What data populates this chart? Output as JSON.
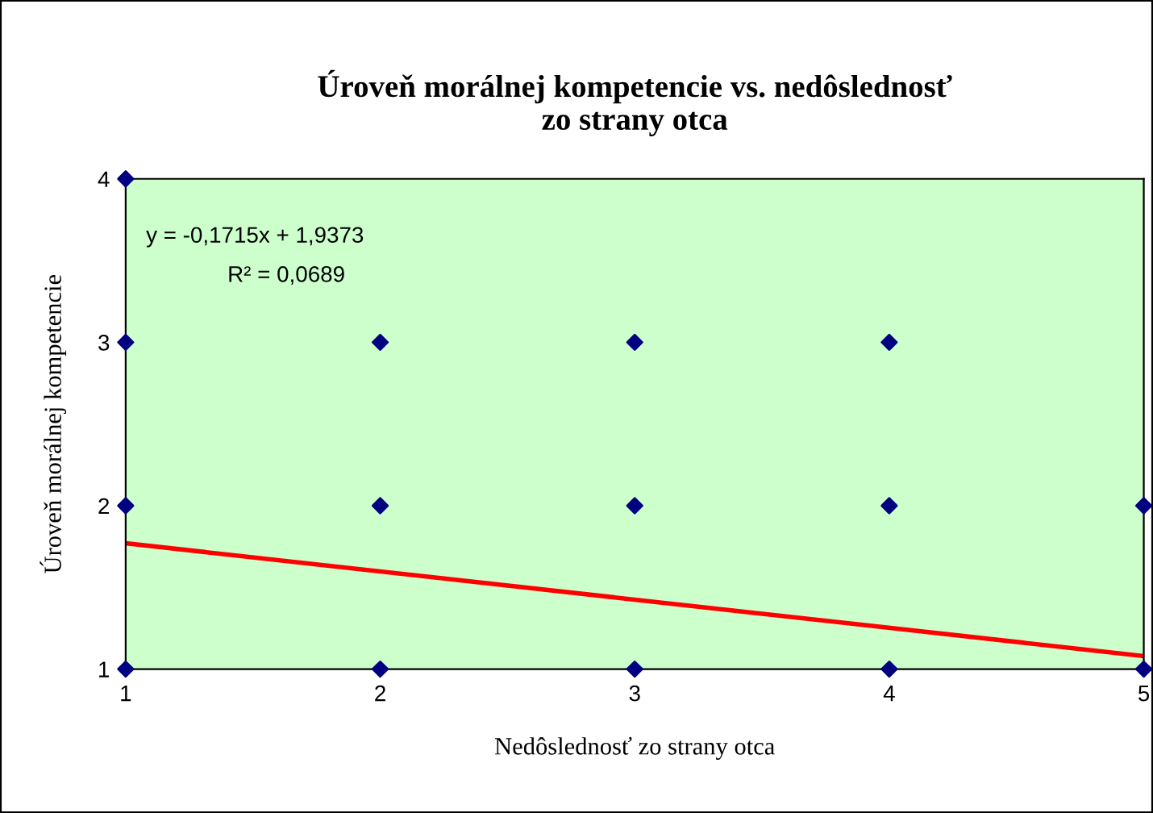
{
  "chart_data": {
    "type": "scatter",
    "title": "Úroveň morálnej kompetencie vs. nedôslednosť\nzo strany otca",
    "xlabel": "Nedôslednosť zo strany otca",
    "ylabel": "Úroveň morálnej kompetencie",
    "series": [
      {
        "type": "scatter",
        "color": "#000080",
        "marker": "diamond",
        "x": [
          1,
          1,
          1,
          1,
          2,
          2,
          2,
          3,
          3,
          3,
          4,
          4,
          4,
          5,
          5
        ],
        "values": [
          4,
          3,
          2,
          1,
          3,
          2,
          1,
          3,
          2,
          1,
          3,
          2,
          1,
          2,
          1
        ]
      },
      {
        "type": "line",
        "color": "#ff0000",
        "line_style": "solid",
        "x": [
          1,
          5
        ],
        "values": [
          1.77,
          1.08
        ]
      }
    ],
    "annotations": [
      "y = -0,1715x + 1,9373",
      "R² = 0,0689"
    ],
    "xlim": [
      1,
      5
    ],
    "xticks": [
      1,
      2,
      3,
      4,
      5
    ],
    "ylim": [
      1,
      4
    ],
    "yticks": [
      1,
      2,
      3,
      4
    ],
    "grid": false,
    "legend": false
  }
}
